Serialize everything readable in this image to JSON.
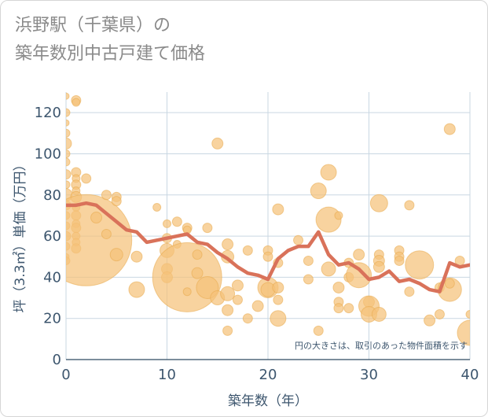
{
  "title_lines": [
    "浜野駅（千葉県）の",
    "築年数別中古戸建て価格"
  ],
  "chart_data": {
    "type": "scatter",
    "xlabel": "築年数（年）",
    "ylabel": "坪（3.3㎡）単価（万円）",
    "xlim": [
      0,
      40
    ],
    "ylim": [
      0,
      130
    ],
    "xticks": [
      0,
      10,
      20,
      30,
      40
    ],
    "yticks": [
      0,
      20,
      40,
      60,
      80,
      100,
      120
    ],
    "grid": true,
    "annotation": "円の大きさは、取引のあった物件面積を示す",
    "colors": {
      "bubble": "#f5c27a",
      "bubble_edge": "#e8a94d",
      "trend": "#d9725a",
      "grid": "#c9d7e2",
      "axis_text": "#3d566e"
    },
    "bubbles": [
      {
        "x": 0,
        "y": 128,
        "r": 4
      },
      {
        "x": 0,
        "y": 120,
        "r": 5
      },
      {
        "x": 0,
        "y": 115,
        "r": 4
      },
      {
        "x": 0,
        "y": 110,
        "r": 5
      },
      {
        "x": 0,
        "y": 105,
        "r": 7
      },
      {
        "x": 0,
        "y": 100,
        "r": 5
      },
      {
        "x": 0,
        "y": 96,
        "r": 5
      },
      {
        "x": 0,
        "y": 90,
        "r": 6
      },
      {
        "x": 0,
        "y": 85,
        "r": 5
      },
      {
        "x": 0,
        "y": 80,
        "r": 8
      },
      {
        "x": 0,
        "y": 75,
        "r": 6
      },
      {
        "x": 0,
        "y": 70,
        "r": 5
      },
      {
        "x": 0,
        "y": 65,
        "r": 5
      },
      {
        "x": 0,
        "y": 60,
        "r": 6
      },
      {
        "x": 0,
        "y": 55,
        "r": 5
      },
      {
        "x": 0,
        "y": 50,
        "r": 4
      },
      {
        "x": 0,
        "y": 48,
        "r": 5
      },
      {
        "x": 1,
        "y": 126,
        "r": 6
      },
      {
        "x": 1,
        "y": 125,
        "r": 5
      },
      {
        "x": 1,
        "y": 91,
        "r": 6
      },
      {
        "x": 1,
        "y": 88,
        "r": 5
      },
      {
        "x": 1,
        "y": 85,
        "r": 6
      },
      {
        "x": 1,
        "y": 82,
        "r": 5
      },
      {
        "x": 1,
        "y": 79,
        "r": 7
      },
      {
        "x": 1,
        "y": 74,
        "r": 5
      },
      {
        "x": 1,
        "y": 70,
        "r": 6
      },
      {
        "x": 1,
        "y": 66,
        "r": 5
      },
      {
        "x": 1,
        "y": 64,
        "r": 6
      },
      {
        "x": 1,
        "y": 60,
        "r": 5
      },
      {
        "x": 1,
        "y": 57,
        "r": 5
      },
      {
        "x": 1,
        "y": 54,
        "r": 6
      },
      {
        "x": 2,
        "y": 88,
        "r": 6
      },
      {
        "x": 2,
        "y": 58,
        "r": 58
      },
      {
        "x": 3,
        "y": 69,
        "r": 7
      },
      {
        "x": 4,
        "y": 80,
        "r": 6
      },
      {
        "x": 4,
        "y": 61,
        "r": 6
      },
      {
        "x": 5,
        "y": 79,
        "r": 6
      },
      {
        "x": 5,
        "y": 77,
        "r": 6
      },
      {
        "x": 5,
        "y": 51,
        "r": 8
      },
      {
        "x": 7,
        "y": 50,
        "r": 7
      },
      {
        "x": 7,
        "y": 34,
        "r": 10
      },
      {
        "x": 9,
        "y": 74,
        "r": 5
      },
      {
        "x": 10,
        "y": 66,
        "r": 5
      },
      {
        "x": 10,
        "y": 59,
        "r": 6
      },
      {
        "x": 10,
        "y": 53,
        "r": 9
      },
      {
        "x": 10,
        "y": 44,
        "r": 7
      },
      {
        "x": 10,
        "y": 40,
        "r": 7
      },
      {
        "x": 11,
        "y": 67,
        "r": 6
      },
      {
        "x": 11,
        "y": 56,
        "r": 5
      },
      {
        "x": 12,
        "y": 64,
        "r": 6
      },
      {
        "x": 12,
        "y": 63,
        "r": 5
      },
      {
        "x": 12,
        "y": 40,
        "r": 44
      },
      {
        "x": 12,
        "y": 33,
        "r": 5
      },
      {
        "x": 13,
        "y": 51,
        "r": 6
      },
      {
        "x": 13,
        "y": 42,
        "r": 7
      },
      {
        "x": 14,
        "y": 64,
        "r": 6
      },
      {
        "x": 14,
        "y": 35,
        "r": 14
      },
      {
        "x": 15,
        "y": 105,
        "r": 7
      },
      {
        "x": 15,
        "y": 30,
        "r": 9
      },
      {
        "x": 16,
        "y": 56,
        "r": 7
      },
      {
        "x": 16,
        "y": 50,
        "r": 8
      },
      {
        "x": 16,
        "y": 32,
        "r": 9
      },
      {
        "x": 16,
        "y": 24,
        "r": 7
      },
      {
        "x": 16,
        "y": 14,
        "r": 6
      },
      {
        "x": 17,
        "y": 36,
        "r": 7
      },
      {
        "x": 17,
        "y": 29,
        "r": 6
      },
      {
        "x": 18,
        "y": 53,
        "r": 6
      },
      {
        "x": 18,
        "y": 20,
        "r": 6
      },
      {
        "x": 19,
        "y": 26,
        "r": 7
      },
      {
        "x": 20,
        "y": 53,
        "r": 6
      },
      {
        "x": 20,
        "y": 50,
        "r": 6
      },
      {
        "x": 20,
        "y": 35,
        "r": 13
      },
      {
        "x": 20,
        "y": 34,
        "r": 9
      },
      {
        "x": 21,
        "y": 73,
        "r": 7
      },
      {
        "x": 21,
        "y": 47,
        "r": 6
      },
      {
        "x": 21,
        "y": 35,
        "r": 7
      },
      {
        "x": 21,
        "y": 29,
        "r": 6
      },
      {
        "x": 21,
        "y": 20,
        "r": 10
      },
      {
        "x": 23,
        "y": 58,
        "r": 6
      },
      {
        "x": 24,
        "y": 48,
        "r": 6
      },
      {
        "x": 24,
        "y": 39,
        "r": 6
      },
      {
        "x": 25,
        "y": 82,
        "r": 10
      },
      {
        "x": 25,
        "y": 14,
        "r": 6
      },
      {
        "x": 26,
        "y": 91,
        "r": 10
      },
      {
        "x": 26,
        "y": 68,
        "r": 16
      },
      {
        "x": 26,
        "y": 44,
        "r": 9
      },
      {
        "x": 27,
        "y": 70,
        "r": 5
      },
      {
        "x": 27,
        "y": 35,
        "r": 7
      },
      {
        "x": 27,
        "y": 28,
        "r": 6
      },
      {
        "x": 27,
        "y": 25,
        "r": 6
      },
      {
        "x": 28,
        "y": 47,
        "r": 6
      },
      {
        "x": 28,
        "y": 40,
        "r": 6
      },
      {
        "x": 28,
        "y": 25,
        "r": 6
      },
      {
        "x": 29,
        "y": 41,
        "r": 16
      },
      {
        "x": 29,
        "y": 51,
        "r": 7
      },
      {
        "x": 30,
        "y": 28,
        "r": 7
      },
      {
        "x": 30,
        "y": 26,
        "r": 13
      },
      {
        "x": 30,
        "y": 22,
        "r": 10
      },
      {
        "x": 31,
        "y": 76,
        "r": 11
      },
      {
        "x": 31,
        "y": 51,
        "r": 6
      },
      {
        "x": 31,
        "y": 48,
        "r": 7
      },
      {
        "x": 31,
        "y": 45,
        "r": 7
      },
      {
        "x": 31,
        "y": 22,
        "r": 9
      },
      {
        "x": 33,
        "y": 53,
        "r": 6
      },
      {
        "x": 33,
        "y": 50,
        "r": 6
      },
      {
        "x": 33,
        "y": 48,
        "r": 6
      },
      {
        "x": 34,
        "y": 75,
        "r": 6
      },
      {
        "x": 34,
        "y": 33,
        "r": 6
      },
      {
        "x": 35,
        "y": 46,
        "r": 18
      },
      {
        "x": 36,
        "y": 19,
        "r": 7
      },
      {
        "x": 37,
        "y": 35,
        "r": 6
      },
      {
        "x": 37,
        "y": 22,
        "r": 6
      },
      {
        "x": 38,
        "y": 112,
        "r": 7
      },
      {
        "x": 38,
        "y": 34,
        "r": 15
      },
      {
        "x": 38,
        "y": 37,
        "r": 6
      },
      {
        "x": 39,
        "y": 48,
        "r": 6
      },
      {
        "x": 40,
        "y": 22,
        "r": 5
      },
      {
        "x": 40,
        "y": 13,
        "r": 16
      }
    ],
    "trend": {
      "x": [
        0,
        1,
        2,
        3,
        4,
        5,
        6,
        7,
        8,
        9,
        10,
        11,
        12,
        13,
        14,
        15,
        16,
        17,
        18,
        19,
        20,
        21,
        22,
        23,
        24,
        25,
        26,
        27,
        28,
        29,
        30,
        31,
        32,
        33,
        34,
        35,
        36,
        37,
        38,
        39,
        40
      ],
      "y": [
        75,
        75,
        76,
        75,
        71,
        67,
        63,
        62,
        57,
        58,
        59,
        60,
        61,
        57,
        56,
        52,
        49,
        45,
        42,
        41,
        39,
        49,
        53,
        55,
        55,
        62,
        51,
        46,
        47,
        44,
        39,
        40,
        43,
        38,
        39,
        37,
        34,
        33,
        47,
        45,
        46
      ]
    }
  }
}
